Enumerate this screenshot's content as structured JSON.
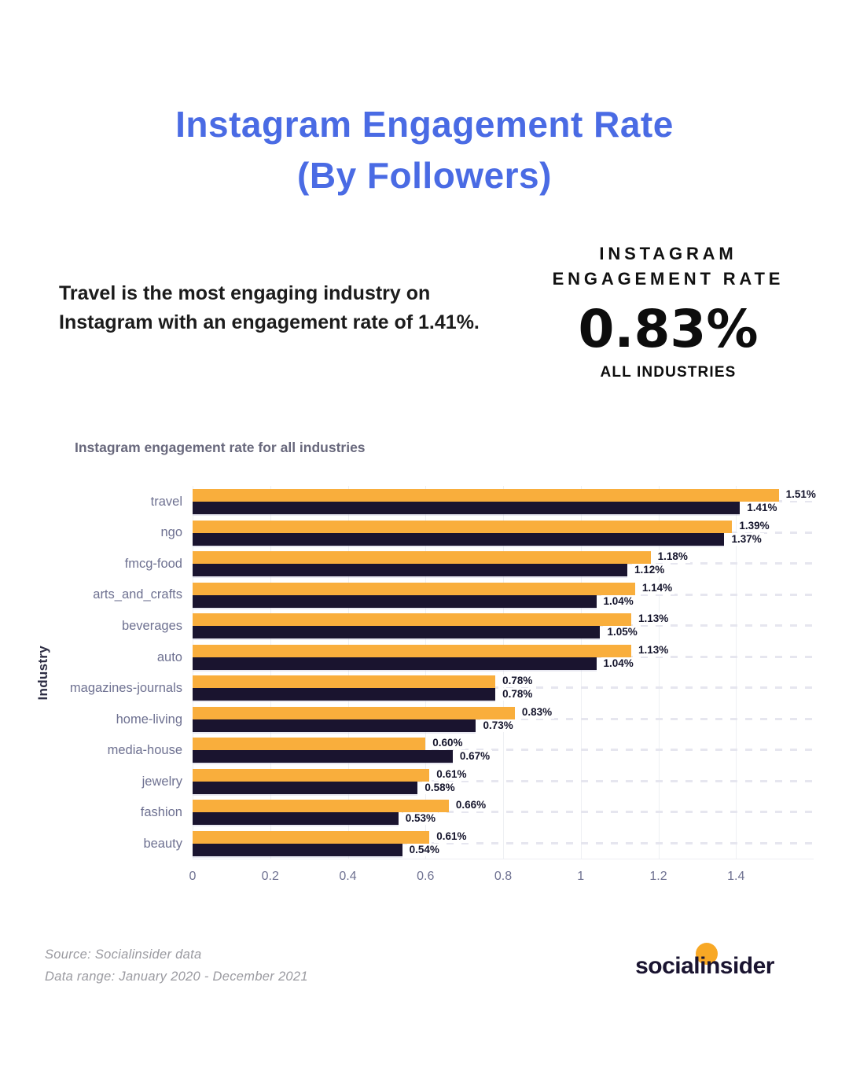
{
  "page": {
    "title_line1": "Instagram Engagement Rate",
    "title_line2": "(By Followers)",
    "highlight_text": "Travel is the most engaging industry on Instagram with an engagement rate of 1.41%.",
    "stat": {
      "label_line1": "INSTAGRAM",
      "label_line2": "ENGAGEMENT RATE",
      "value": "0.83%",
      "sublabel": "ALL INDUSTRIES"
    },
    "footer": {
      "source_line1": "Source: Socialinsider data",
      "source_line2": "Data range: January 2020 - December 2021",
      "logo_part1": "socia",
      "logo_part2": "lin",
      "logo_part3": "sider"
    }
  },
  "colors": {
    "title_blue": "#4a6be4",
    "bar_orange": "#f9ae3c",
    "bar_navy": "#1a142f",
    "axis_gray": "#6e7191",
    "logo_circle_orange": "#f8a825"
  },
  "chart_data": {
    "type": "bar",
    "orientation": "horizontal",
    "title": "Instagram engagement rate for all industries",
    "xlabel": "",
    "ylabel": "Industry",
    "xlim": [
      0,
      1.6
    ],
    "grid": true,
    "legend": false,
    "categories": [
      "travel",
      "ngo",
      "fmcg-food",
      "arts_and_crafts",
      "beverages",
      "auto",
      "magazines-journals",
      "home-living",
      "media-house",
      "jewelry",
      "fashion",
      "beauty"
    ],
    "series": [
      {
        "name": "orange",
        "color": "#f9ae3c",
        "values": [
          1.51,
          1.39,
          1.18,
          1.14,
          1.13,
          1.13,
          0.78,
          0.83,
          0.6,
          0.61,
          0.66,
          0.61
        ]
      },
      {
        "name": "navy",
        "color": "#1a142f",
        "values": [
          1.41,
          1.37,
          1.12,
          1.04,
          1.05,
          1.04,
          0.78,
          0.73,
          0.67,
          0.58,
          0.53,
          0.54
        ]
      }
    ],
    "value_labels": [
      [
        "1.51%",
        "1.41%"
      ],
      [
        "1.39%",
        "1.37%"
      ],
      [
        "1.18%",
        "1.12%"
      ],
      [
        "1.14%",
        "1.04%"
      ],
      [
        "1.13%",
        "1.05%"
      ],
      [
        "1.13%",
        "1.04%"
      ],
      [
        "0.78%",
        "0.78%"
      ],
      [
        "0.83%",
        "0.73%"
      ],
      [
        "0.60%",
        "0.67%"
      ],
      [
        "0.61%",
        "0.58%"
      ],
      [
        "0.66%",
        "0.53%"
      ],
      [
        "0.61%",
        "0.54%"
      ]
    ],
    "xticks": [
      {
        "label": "0",
        "value": 0
      },
      {
        "label": "0.2",
        "value": 0.2
      },
      {
        "label": "0.4",
        "value": 0.4
      },
      {
        "label": "0.6",
        "value": 0.6
      },
      {
        "label": "0.8",
        "value": 0.8
      },
      {
        "label": "1",
        "value": 1
      },
      {
        "label": "1.2",
        "value": 1.2
      },
      {
        "label": "1.4",
        "value": 1.4
      }
    ]
  }
}
